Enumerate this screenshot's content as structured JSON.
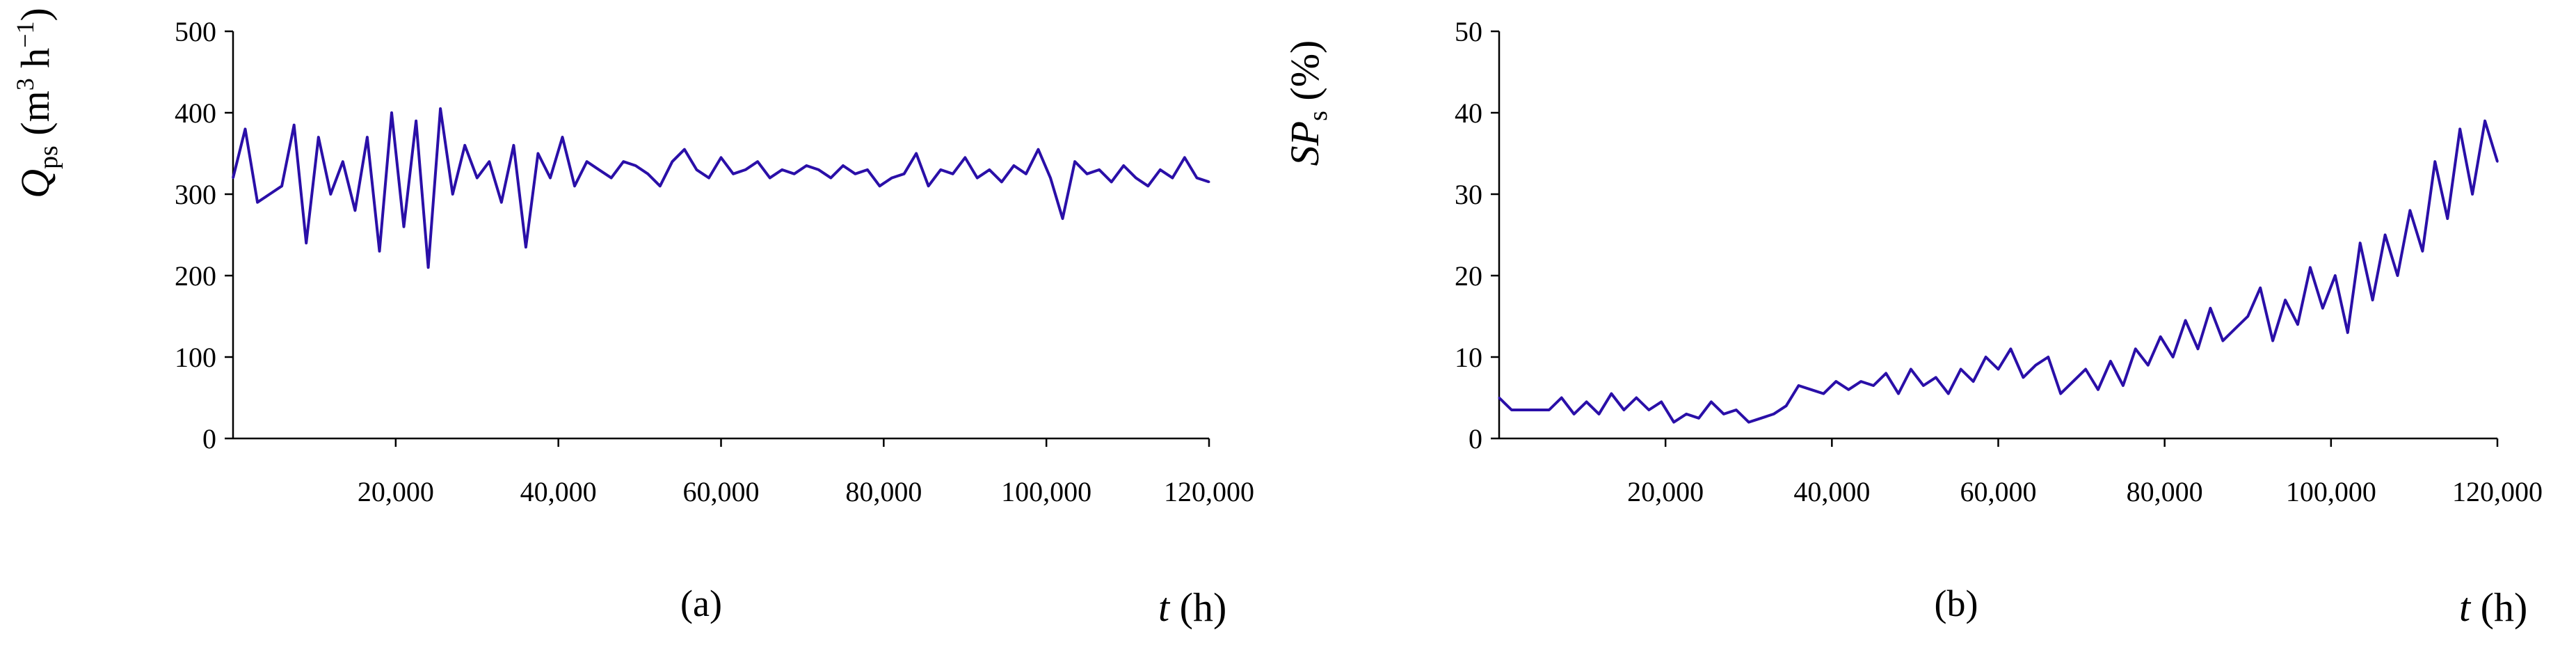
{
  "figure": {
    "panels": [
      {
        "panel_label": "(a)",
        "ylabel_main": "Q",
        "ylabel_sub": "ps",
        "ylabel_units_pre": " (m",
        "ylabel_units_sup1": "3",
        "ylabel_units_mid": " h",
        "ylabel_units_sup2": "−1",
        "ylabel_units_post": ")",
        "xlabel_var": "t",
        "xlabel_unit": " (h)"
      },
      {
        "panel_label": "(b)",
        "ylabel_main": "SP",
        "ylabel_sub": "s",
        "ylabel_units_pre": " (%)",
        "xlabel_var": "t",
        "xlabel_unit": " (h)"
      }
    ]
  },
  "chart_data": [
    {
      "type": "line",
      "panel": "a",
      "xlabel": "t (h)",
      "ylabel": "Qps (m3 h−1)",
      "xlim": [
        0,
        120000
      ],
      "ylim": [
        0,
        500
      ],
      "xticks": [
        20000,
        40000,
        60000,
        80000,
        100000,
        120000
      ],
      "xtick_labels": [
        "20,000",
        "40,000",
        "60,000",
        "80,000",
        "100,000",
        "120,000"
      ],
      "yticks": [
        0,
        100,
        200,
        300,
        400,
        500
      ],
      "ytick_labels": [
        "0",
        "100",
        "200",
        "300",
        "400",
        "500"
      ],
      "color": "#2a0fa8",
      "series": [
        {
          "x": [
            0,
            1500,
            3000,
            4500,
            6000,
            7500,
            9000,
            10500,
            12000,
            13500,
            15000,
            16500,
            18000,
            19500,
            21000,
            22500,
            24000,
            25500,
            27000,
            28500,
            30000,
            31500,
            33000,
            34500,
            36000,
            37500,
            39000,
            40500,
            42000,
            43500,
            45000,
            46500,
            48000,
            49500,
            51000,
            52500,
            54000,
            55500,
            57000,
            58500,
            60000,
            61500,
            63000,
            64500,
            66000,
            67500,
            69000,
            70500,
            72000,
            73500,
            75000,
            76500,
            78000,
            79500,
            81000,
            82500,
            84000,
            85500,
            87000,
            88500,
            90000,
            91500,
            93000,
            94500,
            96000,
            97500,
            99000,
            100500,
            102000,
            103500,
            105000,
            106500,
            108000,
            109500,
            111000,
            112500,
            114000,
            115500,
            117000,
            118500,
            120000
          ],
          "y": [
            320,
            380,
            290,
            300,
            310,
            385,
            240,
            370,
            300,
            340,
            280,
            370,
            230,
            400,
            260,
            390,
            210,
            405,
            300,
            360,
            320,
            340,
            290,
            360,
            235,
            350,
            320,
            370,
            310,
            340,
            330,
            320,
            340,
            335,
            325,
            310,
            340,
            355,
            330,
            320,
            345,
            325,
            330,
            340,
            320,
            330,
            325,
            335,
            330,
            320,
            335,
            325,
            330,
            310,
            320,
            325,
            350,
            310,
            330,
            325,
            345,
            320,
            330,
            315,
            335,
            325,
            355,
            320,
            270,
            340,
            325,
            330,
            315,
            335,
            320,
            310,
            330,
            320,
            345,
            320,
            315
          ]
        }
      ]
    },
    {
      "type": "line",
      "panel": "b",
      "xlabel": "t (h)",
      "ylabel": "SPs (%)",
      "xlim": [
        0,
        120000
      ],
      "ylim": [
        0,
        50
      ],
      "xticks": [
        20000,
        40000,
        60000,
        80000,
        100000,
        120000
      ],
      "xtick_labels": [
        "20,000",
        "40,000",
        "60,000",
        "80,000",
        "100,000",
        "120,000"
      ],
      "yticks": [
        0,
        10,
        20,
        30,
        40,
        50
      ],
      "ytick_labels": [
        "0",
        "10",
        "20",
        "30",
        "40",
        "50"
      ],
      "color": "#2a0fa8",
      "series": [
        {
          "x": [
            0,
            1500,
            3000,
            4500,
            6000,
            7500,
            9000,
            10500,
            12000,
            13500,
            15000,
            16500,
            18000,
            19500,
            21000,
            22500,
            24000,
            25500,
            27000,
            28500,
            30000,
            31500,
            33000,
            34500,
            36000,
            37500,
            39000,
            40500,
            42000,
            43500,
            45000,
            46500,
            48000,
            49500,
            51000,
            52500,
            54000,
            55500,
            57000,
            58500,
            60000,
            61500,
            63000,
            64500,
            66000,
            67500,
            69000,
            70500,
            72000,
            73500,
            75000,
            76500,
            78000,
            79500,
            81000,
            82500,
            84000,
            85500,
            87000,
            88500,
            90000,
            91500,
            93000,
            94500,
            96000,
            97500,
            99000,
            100500,
            102000,
            103500,
            105000,
            106500,
            108000,
            109500,
            111000,
            112500,
            114000,
            115500,
            117000,
            118500,
            120000
          ],
          "y": [
            5,
            3.5,
            3.5,
            3.5,
            3.5,
            5,
            3,
            4.5,
            3,
            5.5,
            3.5,
            5,
            3.5,
            4.5,
            2,
            3,
            2.5,
            4.5,
            3,
            3.5,
            2,
            2.5,
            3,
            4,
            6.5,
            6,
            5.5,
            7,
            6,
            7,
            6.5,
            8,
            5.5,
            8.5,
            6.5,
            7.5,
            5.5,
            8.5,
            7,
            10,
            8.5,
            11,
            7.5,
            9,
            10,
            5.5,
            7,
            8.5,
            6,
            9.5,
            6.5,
            11,
            9,
            12.5,
            10,
            14.5,
            11,
            16,
            12,
            13.5,
            15,
            18.5,
            12,
            17,
            14,
            21,
            16,
            20,
            13,
            24,
            17,
            25,
            20,
            28,
            23,
            34,
            27,
            38,
            30,
            39,
            34
          ]
        }
      ]
    }
  ]
}
